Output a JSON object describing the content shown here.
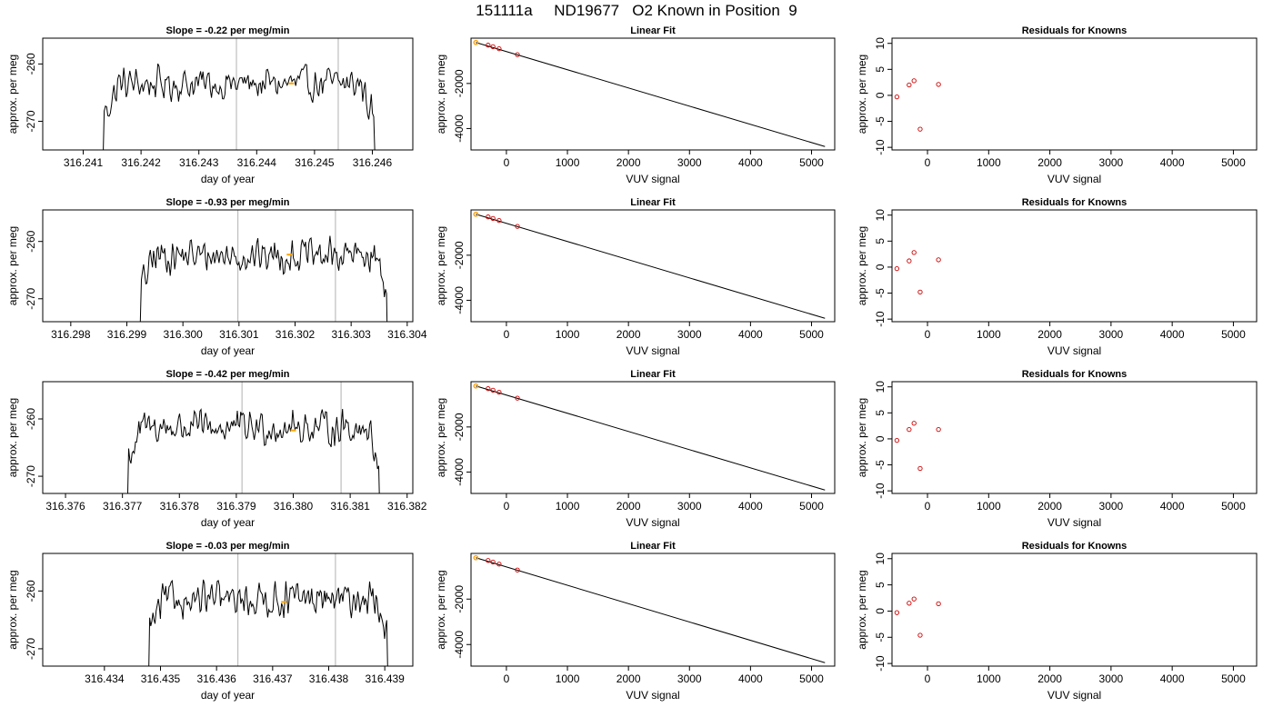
{
  "figure": {
    "title": "151111a     ND19677   O2 Known in Position  9"
  },
  "colors": {
    "trace": "#000000",
    "known_marker": "#FFA500",
    "point": "#CC0000",
    "frame": "#000000",
    "cycle_line": "#BEBEBE"
  },
  "chart_data": [
    {
      "type": "line",
      "row": 1,
      "title": "Slope =  -0.22  per meg/min",
      "xlabel": "day of year",
      "ylabel": "approx. per meg",
      "x_ticks": [
        316.241,
        316.242,
        316.243,
        316.244,
        316.245,
        316.246
      ],
      "x_tick_labels": [
        "316.241",
        "316.242",
        "316.243",
        "316.244",
        "316.245",
        "316.246"
      ],
      "y_ticks": [
        -260,
        -270
      ],
      "y_tick_labels": [
        "-260",
        "-270"
      ],
      "xlim": [
        316.2403,
        316.2467
      ],
      "ylim": [
        -275,
        -255.5
      ],
      "trace_x_range": [
        316.2413,
        316.24615
      ],
      "trace_level": -263.5,
      "vertical_lines": [
        316.24365,
        316.24541
      ],
      "highlight_point": [
        316.2446,
        -263.4
      ]
    },
    {
      "type": "line",
      "row": 2,
      "title": "Slope =  -0.93  per meg/min",
      "xlabel": "day of year",
      "ylabel": "approx. per meg",
      "x_ticks": [
        316.298,
        316.299,
        316.3,
        316.301,
        316.302,
        316.303,
        316.304
      ],
      "x_tick_labels": [
        "316.298",
        "316.299",
        "316.300",
        "316.301",
        "316.302",
        "316.303",
        "316.304"
      ],
      "y_ticks": [
        -260,
        -270
      ],
      "y_tick_labels": [
        "-260",
        "-270"
      ],
      "xlim": [
        316.2975,
        316.3041
      ],
      "ylim": [
        -274,
        -254.5
      ],
      "trace_x_range": [
        316.2992,
        316.30375
      ],
      "trace_level": -262.5,
      "vertical_lines": [
        316.30098,
        316.30272
      ],
      "highlight_point": [
        316.3019,
        -262.3
      ]
    },
    {
      "type": "line",
      "row": 3,
      "title": "Slope =  -0.42  per meg/min",
      "xlabel": "day of year",
      "ylabel": "approx. per meg",
      "x_ticks": [
        316.376,
        316.377,
        316.378,
        316.379,
        316.38,
        316.381,
        316.382
      ],
      "x_tick_labels": [
        "316.376",
        "316.377",
        "316.378",
        "316.379",
        "316.380",
        "316.381",
        "316.382"
      ],
      "y_ticks": [
        -260,
        -270
      ],
      "y_tick_labels": [
        "-260",
        "-270"
      ],
      "xlim": [
        316.3756,
        316.3821
      ],
      "ylim": [
        -273,
        -253.5
      ],
      "trace_x_range": [
        316.37705,
        316.38162
      ],
      "trace_level": -261.5,
      "vertical_lines": [
        316.3791,
        316.38084
      ],
      "highlight_point": [
        316.38,
        -262.0
      ]
    },
    {
      "type": "line",
      "row": 4,
      "title": "Slope =  -0.03  per meg/min",
      "xlabel": "day of year",
      "ylabel": "approx. per meg",
      "x_ticks": [
        316.434,
        316.435,
        316.436,
        316.437,
        316.438,
        316.439
      ],
      "x_tick_labels": [
        "316.434",
        "316.435",
        "316.436",
        "316.437",
        "316.438",
        "316.439"
      ],
      "y_ticks": [
        -260,
        -270
      ],
      "y_tick_labels": [
        "-260",
        "-270"
      ],
      "xlim": [
        316.4329,
        316.4395
      ],
      "ylim": [
        -273,
        -253.5
      ],
      "trace_x_range": [
        316.43475,
        316.43915
      ],
      "trace_level": -261.5,
      "vertical_lines": [
        316.43638,
        316.43812
      ],
      "highlight_point": [
        316.4372,
        -261.9
      ]
    },
    {
      "type": "scatter",
      "row": 1,
      "title": "Linear Fit",
      "xlabel": "VUV signal",
      "ylabel": "approx. per meg",
      "x_ticks": [
        0,
        1000,
        2000,
        3000,
        4000,
        5000
      ],
      "x_tick_labels": [
        "0",
        "1000",
        "2000",
        "3000",
        "4000",
        "5000"
      ],
      "y_ticks": [
        -2000,
        -4000
      ],
      "y_tick_labels": [
        "-2000",
        "-4000"
      ],
      "xlim": [
        -580,
        5380
      ],
      "ylim": [
        -4950,
        10
      ],
      "points": [
        [
          -500,
          -180
        ],
        [
          -300,
          -300
        ],
        [
          -220,
          -370
        ],
        [
          -120,
          -460
        ],
        [
          180,
          -720
        ]
      ],
      "highlight_point": [
        -500,
        -180
      ],
      "fit_line": [
        [
          -500,
          -180
        ],
        [
          5220,
          -4800
        ]
      ]
    },
    {
      "type": "scatter",
      "row": 2,
      "title": "Linear Fit",
      "xlabel": "VUV signal",
      "ylabel": "approx. per meg",
      "x_ticks": [
        0,
        1000,
        2000,
        3000,
        4000,
        5000
      ],
      "x_tick_labels": [
        "0",
        "1000",
        "2000",
        "3000",
        "4000",
        "5000"
      ],
      "y_ticks": [
        -2000,
        -4000
      ],
      "y_tick_labels": [
        "-2000",
        "-4000"
      ],
      "xlim": [
        -580,
        5380
      ],
      "ylim": [
        -4950,
        10
      ],
      "points": [
        [
          -500,
          -180
        ],
        [
          -300,
          -300
        ],
        [
          -220,
          -370
        ],
        [
          -120,
          -460
        ],
        [
          180,
          -720
        ]
      ],
      "highlight_point": [
        -500,
        -180
      ],
      "fit_line": [
        [
          -500,
          -180
        ],
        [
          5220,
          -4800
        ]
      ]
    },
    {
      "type": "scatter",
      "row": 3,
      "title": "Linear Fit",
      "xlabel": "VUV signal",
      "ylabel": "approx. per meg",
      "x_ticks": [
        0,
        1000,
        2000,
        3000,
        4000,
        5000
      ],
      "x_tick_labels": [
        "0",
        "1000",
        "2000",
        "3000",
        "4000",
        "5000"
      ],
      "y_ticks": [
        -2000,
        -4000
      ],
      "y_tick_labels": [
        "-2000",
        "-4000"
      ],
      "xlim": [
        -580,
        5380
      ],
      "ylim": [
        -4950,
        10
      ],
      "points": [
        [
          -500,
          -180
        ],
        [
          -300,
          -300
        ],
        [
          -220,
          -370
        ],
        [
          -120,
          -460
        ],
        [
          180,
          -720
        ]
      ],
      "highlight_point": [
        -500,
        -180
      ],
      "fit_line": [
        [
          -500,
          -180
        ],
        [
          5220,
          -4800
        ]
      ]
    },
    {
      "type": "scatter",
      "row": 4,
      "title": "Linear Fit",
      "xlabel": "VUV signal",
      "ylabel": "approx. per meg",
      "x_ticks": [
        0,
        1000,
        2000,
        3000,
        4000,
        5000
      ],
      "x_tick_labels": [
        "0",
        "1000",
        "2000",
        "3000",
        "4000",
        "5000"
      ],
      "y_ticks": [
        -2000,
        -4000
      ],
      "y_tick_labels": [
        "-2000",
        "-4000"
      ],
      "xlim": [
        -580,
        5380
      ],
      "ylim": [
        -4950,
        10
      ],
      "points": [
        [
          -500,
          -180
        ],
        [
          -300,
          -300
        ],
        [
          -220,
          -370
        ],
        [
          -120,
          -460
        ],
        [
          180,
          -720
        ]
      ],
      "highlight_point": [
        -500,
        -180
      ],
      "fit_line": [
        [
          -500,
          -180
        ],
        [
          5220,
          -4800
        ]
      ]
    },
    {
      "type": "scatter",
      "row": 1,
      "title": "Residuals for Knowns",
      "xlabel": "VUV signal",
      "ylabel": "approx. per meg",
      "x_ticks": [
        0,
        1000,
        2000,
        3000,
        4000,
        5000
      ],
      "x_tick_labels": [
        "0",
        "1000",
        "2000",
        "3000",
        "4000",
        "5000"
      ],
      "y_ticks": [
        10,
        5,
        0,
        -5,
        -10
      ],
      "y_tick_labels": [
        "10",
        "5",
        "0",
        "-5",
        "-10"
      ],
      "xlim": [
        -580,
        5380
      ],
      "ylim": [
        -10.5,
        11
      ],
      "points": [
        [
          -500,
          -0.3
        ],
        [
          -300,
          2.0
        ],
        [
          -220,
          2.8
        ],
        [
          -120,
          -6.5
        ],
        [
          180,
          2.1
        ]
      ]
    },
    {
      "type": "scatter",
      "row": 2,
      "title": "Residuals for Knowns",
      "xlabel": "VUV signal",
      "ylabel": "approx. per meg",
      "x_ticks": [
        0,
        1000,
        2000,
        3000,
        4000,
        5000
      ],
      "x_tick_labels": [
        "0",
        "1000",
        "2000",
        "3000",
        "4000",
        "5000"
      ],
      "y_ticks": [
        10,
        5,
        0,
        -5,
        -10
      ],
      "y_tick_labels": [
        "10",
        "5",
        "0",
        "-5",
        "-10"
      ],
      "xlim": [
        -580,
        5380
      ],
      "ylim": [
        -10.5,
        11
      ],
      "points": [
        [
          -500,
          -0.3
        ],
        [
          -300,
          1.2
        ],
        [
          -220,
          2.8
        ],
        [
          -120,
          -4.8
        ],
        [
          180,
          1.4
        ]
      ]
    },
    {
      "type": "scatter",
      "row": 3,
      "title": "Residuals for Knowns",
      "xlabel": "VUV signal",
      "ylabel": "approx. per meg",
      "x_ticks": [
        0,
        1000,
        2000,
        3000,
        4000,
        5000
      ],
      "x_tick_labels": [
        "0",
        "1000",
        "2000",
        "3000",
        "4000",
        "5000"
      ],
      "y_ticks": [
        10,
        5,
        0,
        -5,
        -10
      ],
      "y_tick_labels": [
        "10",
        "5",
        "0",
        "-5",
        "-10"
      ],
      "xlim": [
        -580,
        5380
      ],
      "ylim": [
        -10.5,
        11
      ],
      "points": [
        [
          -500,
          -0.3
        ],
        [
          -300,
          1.8
        ],
        [
          -220,
          3.0
        ],
        [
          -120,
          -5.7
        ],
        [
          180,
          1.8
        ]
      ]
    },
    {
      "type": "scatter",
      "row": 4,
      "title": "Residuals for Knowns",
      "xlabel": "VUV signal",
      "ylabel": "approx. per meg",
      "x_ticks": [
        0,
        1000,
        2000,
        3000,
        4000,
        5000
      ],
      "x_tick_labels": [
        "0",
        "1000",
        "2000",
        "3000",
        "4000",
        "5000"
      ],
      "y_ticks": [
        10,
        5,
        0,
        -5,
        -10
      ],
      "y_tick_labels": [
        "10",
        "5",
        "0",
        "-5",
        "-10"
      ],
      "xlim": [
        -580,
        5380
      ],
      "ylim": [
        -10.5,
        11
      ],
      "points": [
        [
          -500,
          -0.3
        ],
        [
          -300,
          1.5
        ],
        [
          -220,
          2.3
        ],
        [
          -120,
          -4.6
        ],
        [
          180,
          1.4
        ]
      ]
    }
  ]
}
